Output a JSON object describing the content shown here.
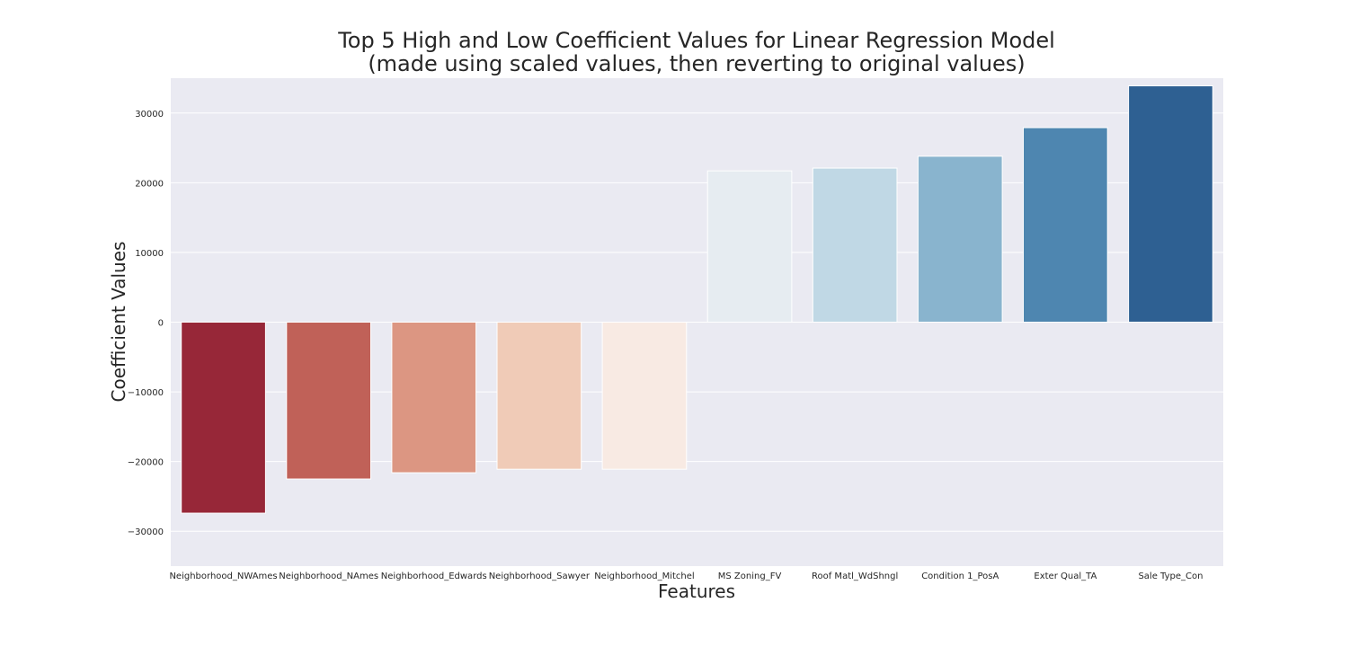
{
  "chart_data": {
    "type": "bar",
    "title": "Top 5 High and Low Coefficient Values for Linear Regression Model",
    "subtitle": "(made using scaled values, then reverting to original values)",
    "xlabel": "Features",
    "ylabel": "Coefficient Values",
    "categories": [
      "Neighborhood_NWAmes",
      "Neighborhood_NAmes",
      "Neighborhood_Edwards",
      "Neighborhood_Sawyer",
      "Neighborhood_Mitchel",
      "MS Zoning_FV",
      "Roof Matl_WdShngl",
      "Condition 1_PosA",
      "Exter Qual_TA",
      "Sale Type_Con"
    ],
    "values": [
      -27400,
      -22500,
      -21600,
      -21100,
      -21100,
      21700,
      22100,
      23800,
      27900,
      33900
    ],
    "colors": [
      "#972738",
      "#c06158",
      "#dc9682",
      "#f0cbb7",
      "#f8eae3",
      "#e6ecf1",
      "#c0d8e5",
      "#89b4ce",
      "#4e86b0",
      "#2e6092"
    ],
    "ylim": [
      -35000,
      35000
    ],
    "yticks": [
      -30000,
      -20000,
      -10000,
      0,
      10000,
      20000,
      30000
    ],
    "ytick_labels": [
      "−30000",
      "−20000",
      "−10000",
      "0",
      "10000",
      "20000",
      "30000"
    ],
    "grid": true,
    "background": "#eaeaf2",
    "gridColor": "#ffffff"
  }
}
